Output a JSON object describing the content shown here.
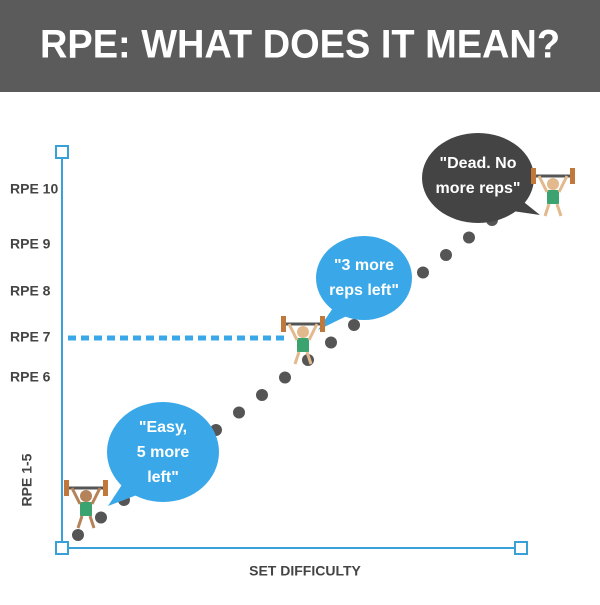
{
  "header": {
    "title": "RPE: WHAT DOES IT MEAN?"
  },
  "y_labels": [
    "RPE 10",
    "RPE 9",
    "RPE 8",
    "RPE 7",
    "RPE 6"
  ],
  "y_label_rotated": "RPE 1-5",
  "x_label": "SET DIFFICULTY",
  "bubbles": [
    {
      "lines": [
        "\"Easy,",
        "5 more",
        "left\""
      ]
    },
    {
      "lines": [
        "\"3 more",
        "reps left\""
      ]
    },
    {
      "lines": [
        "\"Dead. No",
        "more reps\""
      ]
    }
  ]
}
